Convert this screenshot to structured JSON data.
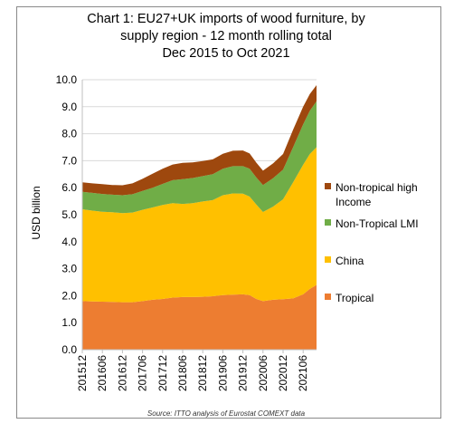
{
  "chart_data": {
    "type": "area",
    "stacked": true,
    "title_lines": [
      "Chart 1: EU27+UK imports of wood furniture, by",
      "supply region - 12 month rolling total",
      "Dec 2015 to Oct 2021"
    ],
    "ylabel": "USD billion",
    "xlabel": "",
    "ylim": [
      0,
      10
    ],
    "y_ticks": [
      "0.0",
      "1.0",
      "2.0",
      "3.0",
      "4.0",
      "5.0",
      "6.0",
      "7.0",
      "8.0",
      "9.0",
      "10.0"
    ],
    "x_ticks": [
      "201512",
      "201606",
      "201612",
      "201706",
      "201712",
      "201806",
      "201812",
      "201906",
      "201912",
      "202006",
      "202012",
      "202106"
    ],
    "x_start": "201512",
    "x_end": "202110",
    "source": "Source: ITTO analysis of Eurostat COMEXT data",
    "legend_placement": "right",
    "x": [
      "201512",
      "201603",
      "201606",
      "201609",
      "201612",
      "201703",
      "201706",
      "201709",
      "201712",
      "201803",
      "201806",
      "201809",
      "201812",
      "201903",
      "201906",
      "201909",
      "201912",
      "202002",
      "202004",
      "202006",
      "202009",
      "202012",
      "202103",
      "202106",
      "202108",
      "202110"
    ],
    "series": [
      {
        "name": "Tropical",
        "color": "#ED7D31",
        "values": [
          1.8,
          1.79,
          1.78,
          1.77,
          1.76,
          1.76,
          1.8,
          1.85,
          1.88,
          1.93,
          1.95,
          1.95,
          1.96,
          1.98,
          2.02,
          2.04,
          2.05,
          2.02,
          1.88,
          1.8,
          1.85,
          1.87,
          1.9,
          2.05,
          2.25,
          2.4
        ]
      },
      {
        "name": "China",
        "color": "#FFC000",
        "values": [
          3.4,
          3.36,
          3.33,
          3.32,
          3.3,
          3.32,
          3.38,
          3.42,
          3.48,
          3.5,
          3.45,
          3.48,
          3.53,
          3.56,
          3.7,
          3.75,
          3.73,
          3.65,
          3.5,
          3.3,
          3.45,
          3.7,
          4.3,
          4.8,
          5.0,
          5.1
        ]
      },
      {
        "name": "Non-Tropical LMI",
        "color": "#70AD47",
        "values": [
          0.65,
          0.66,
          0.66,
          0.65,
          0.66,
          0.68,
          0.7,
          0.73,
          0.78,
          0.85,
          0.92,
          0.93,
          0.94,
          0.96,
          0.98,
          1.01,
          1.02,
          1.03,
          1.0,
          1.0,
          1.05,
          1.1,
          1.3,
          1.5,
          1.6,
          1.7
        ]
      },
      {
        "name": "Non-tropical high Income",
        "color": "#9E480E",
        "values": [
          0.35,
          0.35,
          0.36,
          0.36,
          0.37,
          0.4,
          0.45,
          0.52,
          0.56,
          0.58,
          0.6,
          0.58,
          0.56,
          0.55,
          0.56,
          0.57,
          0.58,
          0.57,
          0.55,
          0.53,
          0.55,
          0.58,
          0.65,
          0.65,
          0.62,
          0.6
        ]
      }
    ]
  }
}
